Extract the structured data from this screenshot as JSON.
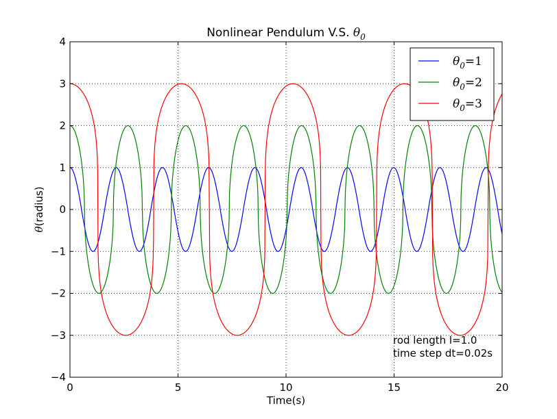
{
  "chart_data": {
    "type": "line",
    "title": "Nonlinear Pendulum V.S.",
    "title_math": "θ",
    "title_math_sub": "0",
    "xlabel": "Time(s)",
    "ylabel_math": "θ",
    "ylabel": "(radius)",
    "xlim": [
      0,
      20
    ],
    "ylim": [
      -4,
      4
    ],
    "xticks": [
      0,
      5,
      10,
      15,
      20
    ],
    "yticks": [
      -4,
      -3,
      -2,
      -1,
      0,
      1,
      2,
      3,
      4
    ],
    "xtick_labels": [
      "0",
      "5",
      "10",
      "15",
      "20"
    ],
    "ytick_labels": [
      "−4",
      "−3",
      "−2",
      "−1",
      "0",
      "1",
      "2",
      "3",
      "4"
    ],
    "grid": true,
    "legend_position": "top-right",
    "series": [
      {
        "name": "θ0 = 1",
        "legend_symbol": "θ",
        "legend_sub": "0",
        "legend_value": "=1",
        "color": "#0000ff",
        "theta0": 1,
        "period": 2.14
      },
      {
        "name": "θ0 = 2",
        "legend_symbol": "θ",
        "legend_sub": "0",
        "legend_value": "=2",
        "color": "#008000",
        "theta0": 2,
        "period": 2.68
      },
      {
        "name": "θ0 = 3",
        "legend_symbol": "θ",
        "legend_sub": "0",
        "legend_value": "=3",
        "color": "#ff0000",
        "theta0": 3,
        "period": 5.16
      }
    ],
    "annotations": [
      "rod length l=1.0",
      "time step dt=0.02s"
    ]
  }
}
